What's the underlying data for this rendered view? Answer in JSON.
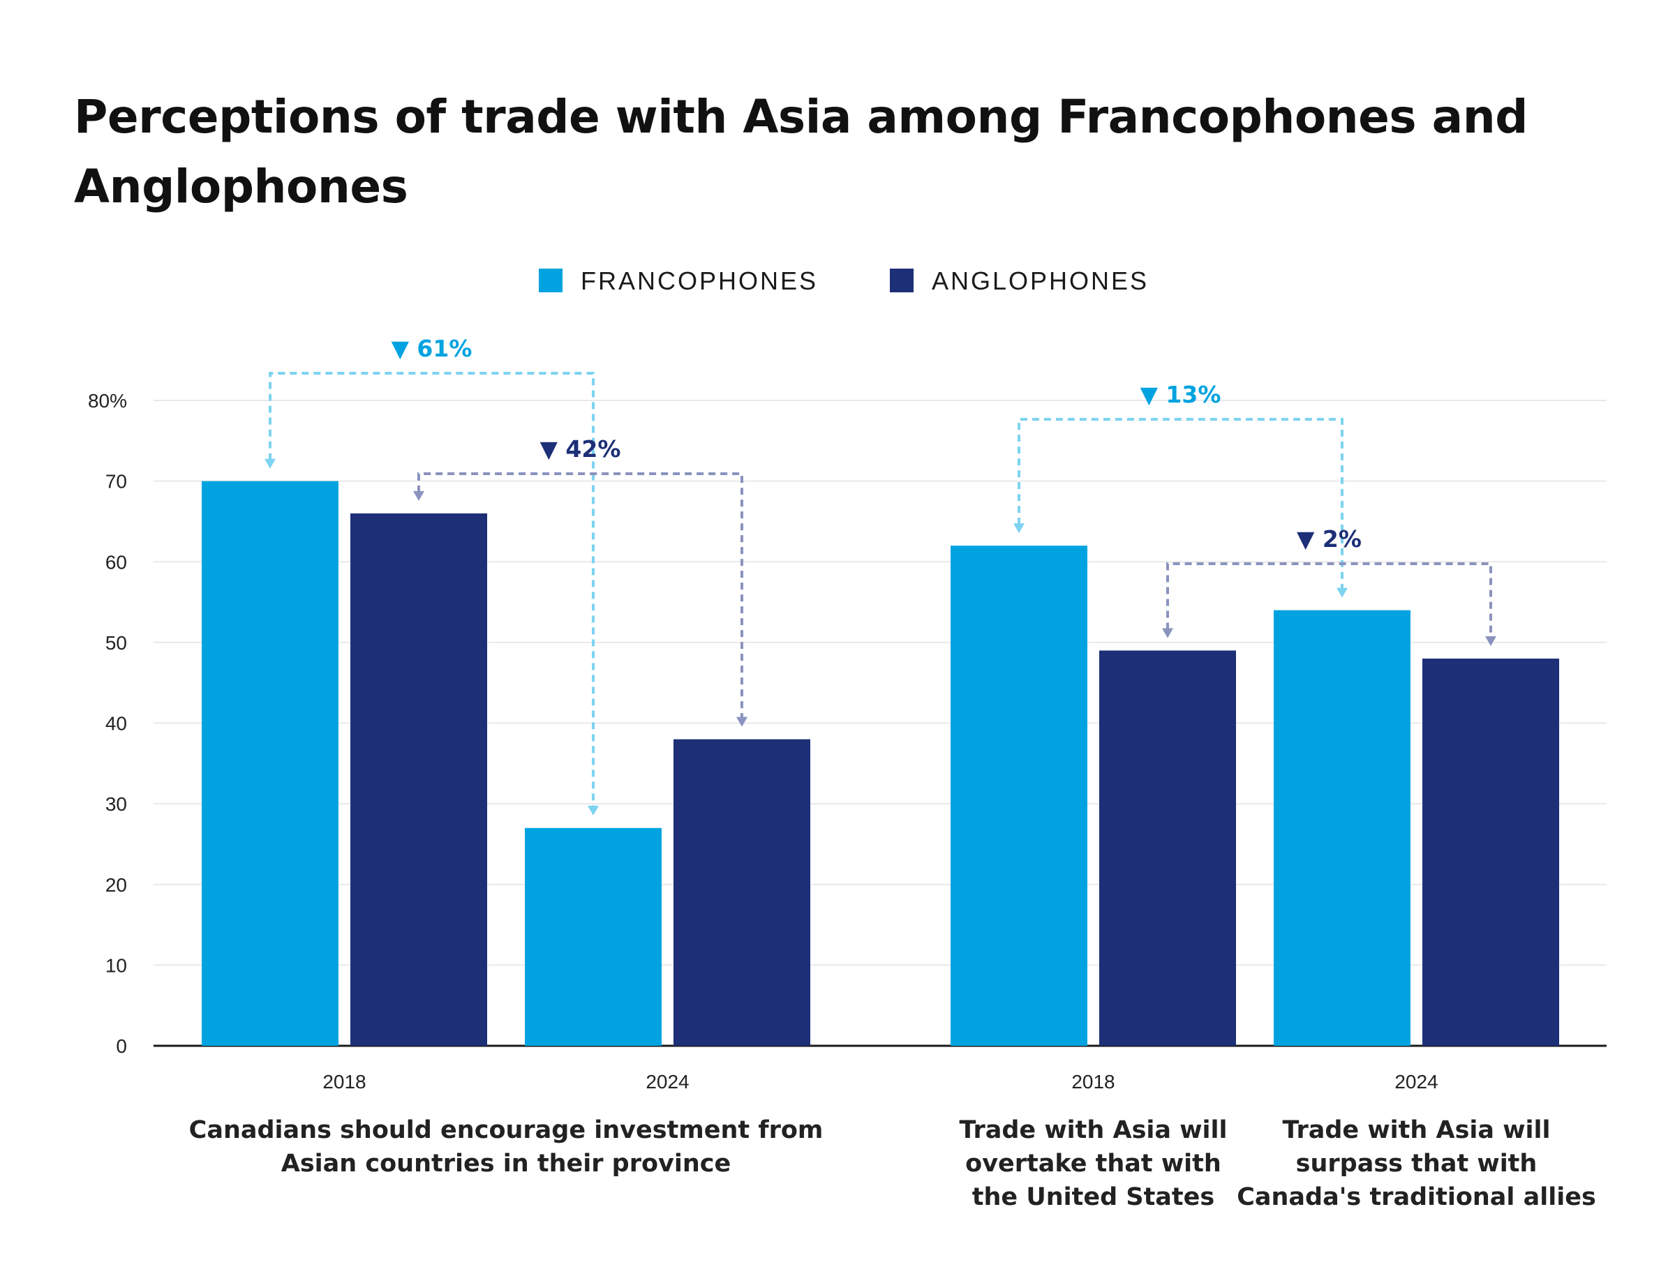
{
  "chart_data": {
    "type": "bar",
    "title": "Perceptions of trade with Asia among Francophones and Anglophones",
    "ylim": [
      0,
      80
    ],
    "yticks": [
      "0",
      "10",
      "20",
      "30",
      "40",
      "50",
      "60",
      "70",
      "80%"
    ],
    "grid": true,
    "legend_position": "top-center",
    "series": [
      {
        "name": "FRANCOPHONES",
        "color": "#00a3e0"
      },
      {
        "name": "ANGLOPHONES",
        "color": "#1c2f77"
      }
    ],
    "groups": [
      {
        "label_lines": [
          "Canadians should encourage investment from",
          "Asian countries in their province"
        ],
        "subgroups": [
          {
            "year": "2018",
            "values": [
              70,
              66
            ]
          },
          {
            "year": "2024",
            "values": [
              27,
              38
            ]
          }
        ]
      },
      {
        "label_lines": [
          "Trade with Asia will",
          "overtake that with",
          "the United States"
        ],
        "subgroups": [
          {
            "year": "2018",
            "values": [
              62,
              49
            ]
          }
        ]
      },
      {
        "label_lines": [
          "Trade with Asia will",
          "surpass that with",
          "Canada's traditional allies"
        ],
        "subgroups": [
          {
            "year": "2024",
            "values": [
              54,
              48
            ]
          }
        ]
      }
    ],
    "annotations": [
      {
        "text": "▼ 61%",
        "series": 0,
        "from": [
          0,
          0
        ],
        "to": [
          0,
          1
        ],
        "color": "#00a3e0",
        "line_color": "#7dd3f0"
      },
      {
        "text": "▼ 42%",
        "series": 1,
        "from": [
          0,
          0
        ],
        "to": [
          0,
          1
        ],
        "color": "#1c2f77",
        "line_color": "#8a92bd"
      },
      {
        "text": "▼ 13%",
        "series": 0,
        "from": [
          1,
          0
        ],
        "to": [
          2,
          0
        ],
        "color": "#00a3e0",
        "line_color": "#7dd3f0"
      },
      {
        "text": "▼ 2%",
        "series": 1,
        "from": [
          1,
          0
        ],
        "to": [
          2,
          0
        ],
        "color": "#1c2f77",
        "line_color": "#8a92bd"
      }
    ]
  }
}
